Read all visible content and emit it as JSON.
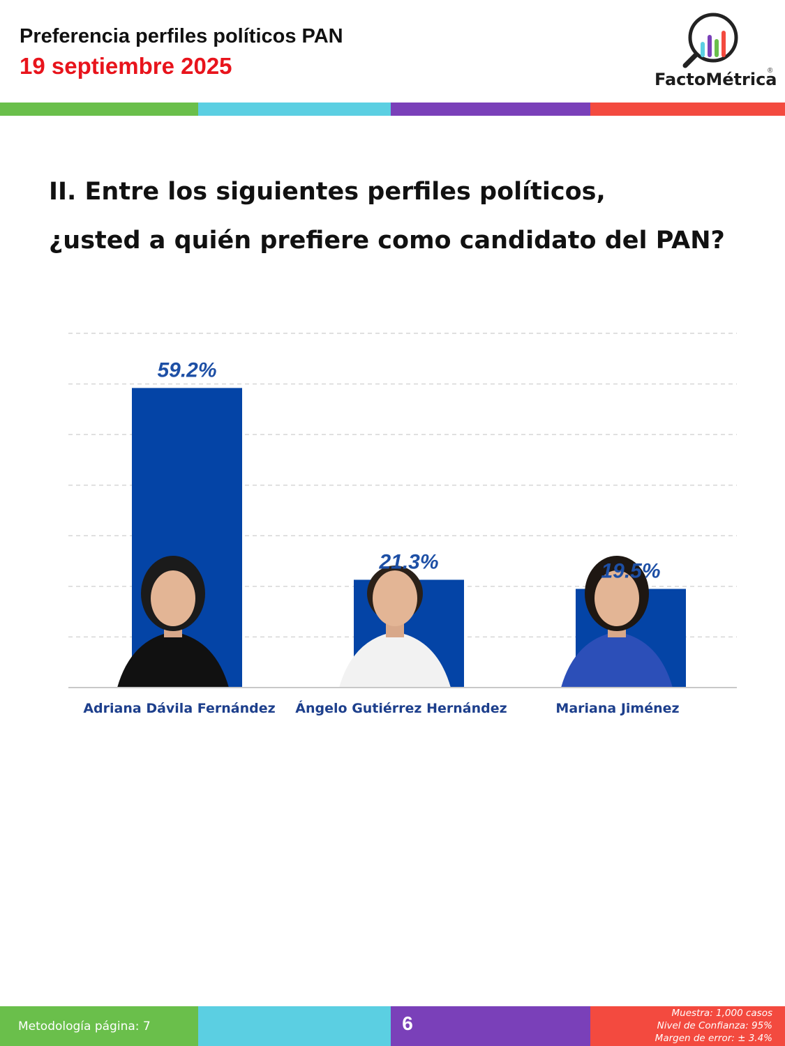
{
  "header": {
    "title": "Preferencia perfiles políticos PAN",
    "date": "19 septiembre 2025"
  },
  "logo": {
    "text": "FactoMétrica",
    "registered": "®"
  },
  "colors": {
    "green": "#6abf4b",
    "cyan": "#5bcfe2",
    "purple": "#7a40b9",
    "red": "#f34a3f",
    "bar": "#0444a6",
    "value_label": "#1d4fa5"
  },
  "question": {
    "line1": "II. Entre los siguientes perfiles políticos,",
    "line2": "¿usted a quién prefiere como candidato del PAN?"
  },
  "chart_data": {
    "type": "bar",
    "categories": [
      "Adriana Dávila Fernández",
      "Ángelo Gutiérrez Hernández",
      "Mariana Jiménez"
    ],
    "values": [
      59.2,
      21.3,
      19.5
    ],
    "value_labels": [
      "59.2%",
      "21.3%",
      "19.5%"
    ],
    "ylim": [
      0,
      70
    ],
    "grid": true
  },
  "footer": {
    "methodology": "Metodología página: 7",
    "page": "6",
    "sample": "Muestra:  1,000 casos",
    "confidence": "Nivel de Confianza: 95%",
    "error": "Margen de error: ± 3.4%"
  }
}
